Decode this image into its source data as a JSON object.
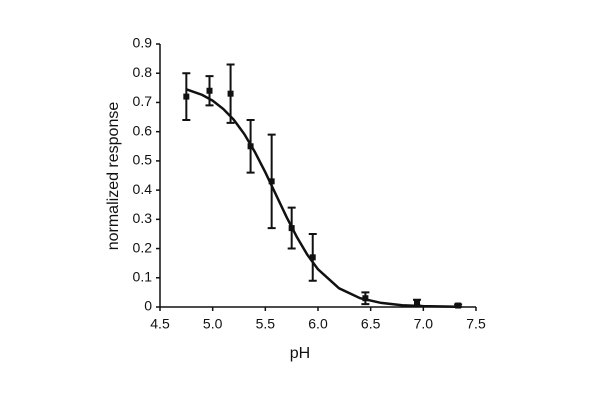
{
  "chart_data": {
    "type": "scatter",
    "xlabel": "pH",
    "ylabel": "normalized response",
    "xlim": [
      4.5,
      7.5
    ],
    "ylim": [
      0,
      0.9
    ],
    "xticks": [
      4.5,
      {
        "value": 5,
        "label": "5.0"
      },
      5.5,
      {
        "value": 6,
        "label": "6.0"
      },
      6.5,
      {
        "value": 7,
        "label": "7.0"
      },
      7.5
    ],
    "yticks": [
      0,
      0.1,
      0.2,
      0.3,
      0.4,
      0.5,
      0.6,
      0.7,
      0.8,
      0.9
    ],
    "series": [
      {
        "color": "#111111",
        "x": [
          4.75,
          4.97,
          5.17,
          5.36,
          5.56,
          5.75,
          5.95,
          6.45,
          6.94,
          7.33
        ],
        "values": [
          0.72,
          0.74,
          0.73,
          0.55,
          0.43,
          0.27,
          0.17,
          0.03,
          0.015,
          0.005
        ],
        "errors": [
          0.08,
          0.05,
          0.1,
          0.09,
          0.16,
          0.07,
          0.08,
          0.02,
          0.01,
          0.004
        ]
      },
      {
        "color": "#111111",
        "line": true,
        "x": [
          4.75,
          4.9,
          5.0,
          5.1,
          5.2,
          5.3,
          5.4,
          5.5,
          5.6,
          5.7,
          5.8,
          5.9,
          6.0,
          6.2,
          6.4,
          6.6,
          6.8,
          7.0,
          7.33
        ],
        "values": [
          0.745,
          0.726,
          0.706,
          0.678,
          0.641,
          0.592,
          0.531,
          0.461,
          0.385,
          0.309,
          0.239,
          0.178,
          0.129,
          0.064,
          0.03,
          0.014,
          0.006,
          0.003,
          0.001
        ]
      }
    ]
  }
}
